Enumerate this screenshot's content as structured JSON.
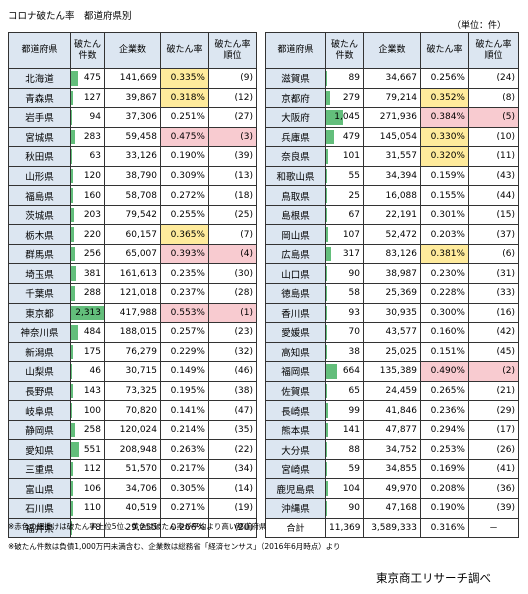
{
  "title": "コロナ破たん率　都道府県別",
  "unit": "（単位：件）",
  "headers": {
    "pref": "都道府県",
    "bankruptcies": "破たん\n件数",
    "companies": "企業数",
    "rate": "破たん率",
    "rank": "破たん率\n順位"
  },
  "colors": {
    "header_bg": "#dce6f1",
    "bar": "#63be7b",
    "yellow": "#ffeb9c",
    "red": "#f8cbd0"
  },
  "left_rows": [
    {
      "pref": "北海道",
      "count": "475",
      "companies": "141,669",
      "rate": "0.335%",
      "rank": "(9)",
      "hl": "yellow",
      "countval": 475
    },
    {
      "pref": "青森県",
      "count": "127",
      "companies": "39,867",
      "rate": "0.318%",
      "rank": "(12)",
      "hl": "yellow",
      "countval": 127
    },
    {
      "pref": "岩手県",
      "count": "94",
      "companies": "37,306",
      "rate": "0.251%",
      "rank": "(27)",
      "hl": "",
      "countval": 94
    },
    {
      "pref": "宮城県",
      "count": "283",
      "companies": "59,458",
      "rate": "0.475%",
      "rank": "(3)",
      "hl": "red",
      "countval": 283
    },
    {
      "pref": "秋田県",
      "count": "63",
      "companies": "33,126",
      "rate": "0.190%",
      "rank": "(39)",
      "hl": "",
      "countval": 63
    },
    {
      "pref": "山形県",
      "count": "120",
      "companies": "38,790",
      "rate": "0.309%",
      "rank": "(13)",
      "hl": "",
      "countval": 120
    },
    {
      "pref": "福島県",
      "count": "160",
      "companies": "58,708",
      "rate": "0.272%",
      "rank": "(18)",
      "hl": "",
      "countval": 160
    },
    {
      "pref": "茨城県",
      "count": "203",
      "companies": "79,542",
      "rate": "0.255%",
      "rank": "(25)",
      "hl": "",
      "countval": 203
    },
    {
      "pref": "栃木県",
      "count": "220",
      "companies": "60,157",
      "rate": "0.365%",
      "rank": "(7)",
      "hl": "yellow",
      "countval": 220
    },
    {
      "pref": "群馬県",
      "count": "256",
      "companies": "65,007",
      "rate": "0.393%",
      "rank": "(4)",
      "hl": "red",
      "countval": 256
    },
    {
      "pref": "埼玉県",
      "count": "381",
      "companies": "161,613",
      "rate": "0.235%",
      "rank": "(30)",
      "hl": "",
      "countval": 381
    },
    {
      "pref": "千葉県",
      "count": "288",
      "companies": "121,018",
      "rate": "0.237%",
      "rank": "(28)",
      "hl": "",
      "countval": 288
    },
    {
      "pref": "東京都",
      "count": "2,313",
      "companies": "417,988",
      "rate": "0.553%",
      "rank": "(1)",
      "hl": "red",
      "countval": 2313
    },
    {
      "pref": "神奈川県",
      "count": "484",
      "companies": "188,015",
      "rate": "0.257%",
      "rank": "(23)",
      "hl": "",
      "countval": 484
    },
    {
      "pref": "新潟県",
      "count": "175",
      "companies": "76,279",
      "rate": "0.229%",
      "rank": "(32)",
      "hl": "",
      "countval": 175
    },
    {
      "pref": "山梨県",
      "count": "46",
      "companies": "30,715",
      "rate": "0.149%",
      "rank": "(46)",
      "hl": "",
      "countval": 46
    },
    {
      "pref": "長野県",
      "count": "143",
      "companies": "73,325",
      "rate": "0.195%",
      "rank": "(38)",
      "hl": "",
      "countval": 143
    },
    {
      "pref": "岐阜県",
      "count": "100",
      "companies": "70,820",
      "rate": "0.141%",
      "rank": "(47)",
      "hl": "",
      "countval": 100
    },
    {
      "pref": "静岡県",
      "count": "258",
      "companies": "120,024",
      "rate": "0.214%",
      "rank": "(35)",
      "hl": "",
      "countval": 258
    },
    {
      "pref": "愛知県",
      "count": "551",
      "companies": "208,948",
      "rate": "0.263%",
      "rank": "(22)",
      "hl": "",
      "countval": 551
    },
    {
      "pref": "三重県",
      "count": "112",
      "companies": "51,570",
      "rate": "0.217%",
      "rank": "(34)",
      "hl": "",
      "countval": 112
    },
    {
      "pref": "富山県",
      "count": "106",
      "companies": "34,706",
      "rate": "0.305%",
      "rank": "(14)",
      "hl": "",
      "countval": 106
    },
    {
      "pref": "石川県",
      "count": "110",
      "companies": "40,519",
      "rate": "0.271%",
      "rank": "(19)",
      "hl": "",
      "countval": 110
    },
    {
      "pref": "福井県",
      "count": "78",
      "companies": "29,255",
      "rate": "0.266%",
      "rank": "(20)",
      "hl": "",
      "countval": 78
    }
  ],
  "right_rows": [
    {
      "pref": "滋賀県",
      "count": "89",
      "companies": "34,667",
      "rate": "0.256%",
      "rank": "(24)",
      "hl": "",
      "countval": 89
    },
    {
      "pref": "京都府",
      "count": "279",
      "companies": "79,214",
      "rate": "0.352%",
      "rank": "(8)",
      "hl": "yellow",
      "countval": 279
    },
    {
      "pref": "大阪府",
      "count": "1,045",
      "companies": "271,936",
      "rate": "0.384%",
      "rank": "(5)",
      "hl": "red",
      "countval": 1045
    },
    {
      "pref": "兵庫県",
      "count": "479",
      "companies": "145,054",
      "rate": "0.330%",
      "rank": "(10)",
      "hl": "yellow",
      "countval": 479
    },
    {
      "pref": "奈良県",
      "count": "101",
      "companies": "31,557",
      "rate": "0.320%",
      "rank": "(11)",
      "hl": "yellow",
      "countval": 101
    },
    {
      "pref": "和歌山県",
      "count": "55",
      "companies": "34,394",
      "rate": "0.159%",
      "rank": "(43)",
      "hl": "",
      "countval": 55
    },
    {
      "pref": "鳥取県",
      "count": "25",
      "companies": "16,088",
      "rate": "0.155%",
      "rank": "(44)",
      "hl": "",
      "countval": 25
    },
    {
      "pref": "島根県",
      "count": "67",
      "companies": "22,191",
      "rate": "0.301%",
      "rank": "(15)",
      "hl": "",
      "countval": 67
    },
    {
      "pref": "岡山県",
      "count": "107",
      "companies": "52,472",
      "rate": "0.203%",
      "rank": "(37)",
      "hl": "",
      "countval": 107
    },
    {
      "pref": "広島県",
      "count": "317",
      "companies": "83,126",
      "rate": "0.381%",
      "rank": "(6)",
      "hl": "yellow",
      "countval": 317
    },
    {
      "pref": "山口県",
      "count": "90",
      "companies": "38,987",
      "rate": "0.230%",
      "rank": "(31)",
      "hl": "",
      "countval": 90
    },
    {
      "pref": "徳島県",
      "count": "58",
      "companies": "25,369",
      "rate": "0.228%",
      "rank": "(33)",
      "hl": "",
      "countval": 58
    },
    {
      "pref": "香川県",
      "count": "93",
      "companies": "30,935",
      "rate": "0.300%",
      "rank": "(16)",
      "hl": "",
      "countval": 93
    },
    {
      "pref": "愛媛県",
      "count": "70",
      "companies": "43,577",
      "rate": "0.160%",
      "rank": "(42)",
      "hl": "",
      "countval": 70
    },
    {
      "pref": "高知県",
      "count": "38",
      "companies": "25,025",
      "rate": "0.151%",
      "rank": "(45)",
      "hl": "",
      "countval": 38
    },
    {
      "pref": "福岡県",
      "count": "664",
      "companies": "135,389",
      "rate": "0.490%",
      "rank": "(2)",
      "hl": "red",
      "countval": 664
    },
    {
      "pref": "佐賀県",
      "count": "65",
      "companies": "24,459",
      "rate": "0.265%",
      "rank": "(21)",
      "hl": "",
      "countval": 65
    },
    {
      "pref": "長崎県",
      "count": "99",
      "companies": "41,846",
      "rate": "0.236%",
      "rank": "(29)",
      "hl": "",
      "countval": 99
    },
    {
      "pref": "熊本県",
      "count": "141",
      "companies": "47,877",
      "rate": "0.294%",
      "rank": "(17)",
      "hl": "",
      "countval": 141
    },
    {
      "pref": "大分県",
      "count": "88",
      "companies": "34,752",
      "rate": "0.253%",
      "rank": "(26)",
      "hl": "",
      "countval": 88
    },
    {
      "pref": "宮崎県",
      "count": "59",
      "companies": "34,855",
      "rate": "0.169%",
      "rank": "(41)",
      "hl": "",
      "countval": 59
    },
    {
      "pref": "鹿児島県",
      "count": "104",
      "companies": "49,970",
      "rate": "0.208%",
      "rank": "(36)",
      "hl": "",
      "countval": 104
    },
    {
      "pref": "沖縄県",
      "count": "90",
      "companies": "47,168",
      "rate": "0.190%",
      "rank": "(39)",
      "hl": "",
      "countval": 90
    }
  ],
  "total": {
    "label": "合計",
    "count": "11,369",
    "companies": "3,589,333",
    "rate": "0.316%",
    "rank": "－"
  },
  "notes": {
    "note1": "※赤色の網掛けは破たん率上位5位、黄色は破たん率が平均より高い都道府県",
    "note2": "※破たん件数は負債1,000万円未満含む、企業数は総務省「経済センサス」（2016年6月時点）より"
  },
  "credit": "東京商工リサーチ調べ"
}
